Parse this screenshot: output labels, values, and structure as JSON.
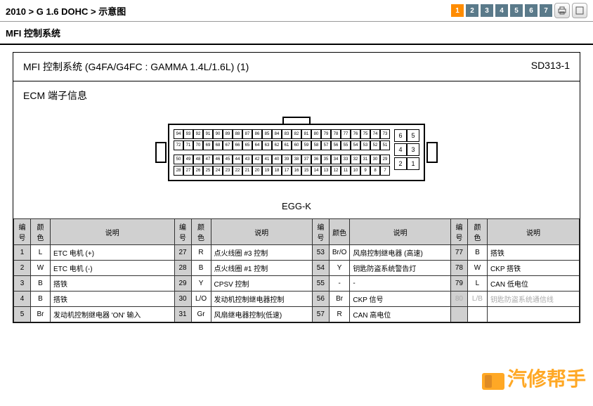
{
  "breadcrumb": "2010 > G 1.6 DOHC > 示意图",
  "pager": {
    "pages": [
      "1",
      "2",
      "3",
      "4",
      "5",
      "6",
      "7"
    ],
    "active": 0
  },
  "section_title": "MFI 控制系统",
  "doc": {
    "title_left": "MFI 控制系统  (G4FA/G4FC : GAMMA 1.4L/1.6L) (1)",
    "title_right": "SD313-1",
    "ecm_title": "ECM 端子信息",
    "connector_label": "EGG-K"
  },
  "connector": {
    "main_rows": [
      [
        "94",
        "93",
        "92",
        "91",
        "90",
        "89",
        "88",
        "87",
        "86",
        "85",
        "84",
        "83",
        "82",
        "81",
        "80",
        "79",
        "78",
        "77",
        "76",
        "75",
        "74",
        "73"
      ],
      [
        "72",
        "71",
        "70",
        "69",
        "68",
        "67",
        "66",
        "65",
        "64",
        "63",
        "62",
        "61",
        "60",
        "59",
        "58",
        "57",
        "56",
        "55",
        "54",
        "53",
        "52",
        "51"
      ],
      [
        "50",
        "49",
        "48",
        "47",
        "46",
        "45",
        "44",
        "43",
        "42",
        "41",
        "40",
        "39",
        "38",
        "37",
        "36",
        "35",
        "34",
        "33",
        "32",
        "31",
        "30",
        "29"
      ],
      [
        "28",
        "27",
        "26",
        "25",
        "24",
        "23",
        "22",
        "21",
        "20",
        "19",
        "18",
        "17",
        "16",
        "15",
        "14",
        "13",
        "12",
        "11",
        "10",
        "9",
        "8",
        "7"
      ]
    ],
    "side_rows": [
      [
        "6",
        "5"
      ],
      [
        "4",
        "3"
      ],
      [
        "2",
        "1"
      ]
    ]
  },
  "table": {
    "headers": [
      "编号",
      "颜色",
      "说明"
    ],
    "groups": [
      [
        {
          "n": "1",
          "c": "L",
          "d": "ETC 电机 (+)"
        },
        {
          "n": "2",
          "c": "W",
          "d": "ETC 电机 (-)"
        },
        {
          "n": "3",
          "c": "B",
          "d": "搭铁"
        },
        {
          "n": "4",
          "c": "B",
          "d": "搭铁"
        },
        {
          "n": "5",
          "c": "Br",
          "d": "发动机控制继电器 'ON' 输入"
        }
      ],
      [
        {
          "n": "27",
          "c": "R",
          "d": "点火线圈 #3 控制"
        },
        {
          "n": "28",
          "c": "B",
          "d": "点火线圈 #1 控制"
        },
        {
          "n": "29",
          "c": "Y",
          "d": "CPSV 控制"
        },
        {
          "n": "30",
          "c": "L/O",
          "d": "发动机控制继电器控制"
        },
        {
          "n": "31",
          "c": "Gr",
          "d": "风扇继电器控制(低速)"
        }
      ],
      [
        {
          "n": "53",
          "c": "Br/O",
          "d": "风扇控制继电器 (高速)"
        },
        {
          "n": "54",
          "c": "Y",
          "d": "钥匙防盗系统警告灯"
        },
        {
          "n": "55",
          "c": "-",
          "d": "-"
        },
        {
          "n": "56",
          "c": "Br",
          "d": "CKP 信号"
        },
        {
          "n": "57",
          "c": "R",
          "d": "CAN 高电位"
        }
      ],
      [
        {
          "n": "77",
          "c": "B",
          "d": "搭铁"
        },
        {
          "n": "78",
          "c": "W",
          "d": "CKP 搭铁"
        },
        {
          "n": "79",
          "c": "L",
          "d": "CAN 低电位"
        },
        {
          "n": "80",
          "c": "L/B",
          "d": "钥匙防盗系统通信线",
          "dim": true
        },
        {
          "n": "",
          "c": "",
          "d": ""
        }
      ]
    ]
  },
  "watermark": "汽修帮手"
}
